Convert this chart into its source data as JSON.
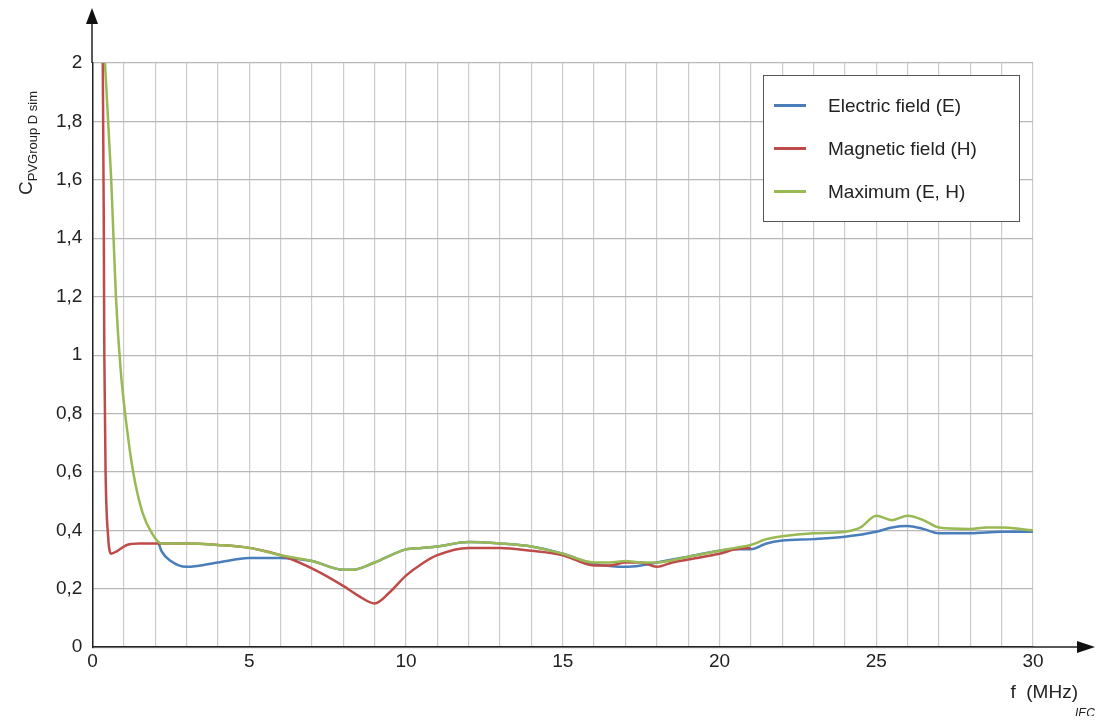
{
  "chart_data": {
    "type": "line",
    "xlabel": "f  (MHz)",
    "ylabel": "C$_{PVGroup D sim}$",
    "annotations": [
      "IEC"
    ],
    "xlim": [
      0,
      30
    ],
    "ylim": [
      0,
      2
    ],
    "xticks": [
      0,
      {
        "value": 1,
        "label": null
      },
      {
        "value": 2,
        "label": null
      },
      {
        "value": 3,
        "label": null
      },
      {
        "value": 4,
        "label": null
      },
      5,
      {
        "value": 6,
        "label": null
      },
      {
        "value": 7,
        "label": null
      },
      {
        "value": 8,
        "label": null
      },
      {
        "value": 9,
        "label": null
      },
      10,
      {
        "value": 11,
        "label": null
      },
      {
        "value": 12,
        "label": null
      },
      {
        "value": 13,
        "label": null
      },
      {
        "value": 14,
        "label": null
      },
      15,
      {
        "value": 16,
        "label": null
      },
      {
        "value": 17,
        "label": null
      },
      {
        "value": 18,
        "label": null
      },
      {
        "value": 19,
        "label": null
      },
      20,
      {
        "value": 21,
        "label": null
      },
      {
        "value": 22,
        "label": null
      },
      {
        "value": 23,
        "label": null
      },
      {
        "value": 24,
        "label": null
      },
      25,
      {
        "value": 26,
        "label": null
      },
      {
        "value": 27,
        "label": null
      },
      {
        "value": 28,
        "label": null
      },
      {
        "value": 29,
        "label": null
      },
      30
    ],
    "yticks": [
      0,
      {
        "value": 0.2,
        "label": "0,2"
      },
      {
        "value": 0.4,
        "label": "0,4"
      },
      {
        "value": 0.6,
        "label": "0,6"
      },
      {
        "value": 0.8,
        "label": "0,8"
      },
      1,
      {
        "value": 1.2,
        "label": "1,2"
      },
      {
        "value": 1.4,
        "label": "1,4"
      },
      {
        "value": 1.6,
        "label": "1,6"
      },
      {
        "value": 1.8,
        "label": "1,8"
      },
      2
    ],
    "grid": true,
    "legend": "top right",
    "marker": "none",
    "line_style": "solid",
    "series": [
      {
        "name": "Electric field (E)",
        "color": "#4a7ebb",
        "x": [
          2.1,
          2.2,
          2.5,
          3,
          4,
          5,
          6,
          7,
          8,
          8.3,
          9,
          10,
          10.5,
          11,
          12,
          13,
          14,
          15,
          16,
          16.5,
          17,
          17.5,
          18,
          19,
          20,
          20.5,
          21,
          21.5,
          22,
          23,
          24,
          25,
          25.5,
          26,
          26.5,
          27,
          28,
          29,
          30
        ],
        "values": [
          0.36,
          0.33,
          0.295,
          0.275,
          0.29,
          0.305,
          0.305,
          0.295,
          0.265,
          0.265,
          0.29,
          0.335,
          0.34,
          0.345,
          0.36,
          0.355,
          0.345,
          0.32,
          0.285,
          0.278,
          0.275,
          0.28,
          0.29,
          0.31,
          0.33,
          0.335,
          0.335,
          0.355,
          0.365,
          0.37,
          0.378,
          0.395,
          0.41,
          0.415,
          0.405,
          0.39,
          0.39,
          0.395,
          0.395
        ]
      },
      {
        "name": "Magnetic field (H)",
        "color": "#be4b48",
        "x": [
          0.33,
          0.36,
          0.38,
          0.42,
          0.5,
          0.6,
          0.8,
          1.1,
          1.5,
          2,
          3,
          4,
          5,
          6,
          7,
          8,
          8.5,
          9,
          9.5,
          10,
          10.5,
          11,
          12,
          13,
          14,
          15,
          16,
          16.5,
          17,
          17.5,
          18,
          18.5,
          19,
          20,
          20.5,
          21
        ],
        "values": [
          2.0,
          1.5,
          1.0,
          0.6,
          0.38,
          0.32,
          0.33,
          0.35,
          0.355,
          0.355,
          0.355,
          0.35,
          0.34,
          0.315,
          0.27,
          0.21,
          0.175,
          0.15,
          0.19,
          0.245,
          0.285,
          0.315,
          0.34,
          0.34,
          0.33,
          0.315,
          0.28,
          0.28,
          0.29,
          0.29,
          0.275,
          0.29,
          0.3,
          0.32,
          0.335,
          0.34
        ]
      },
      {
        "name": "Maximum (E, H)",
        "color": "#98b954",
        "x": [
          0.4,
          0.6,
          0.75,
          0.9,
          1.1,
          1.3,
          1.6,
          1.9,
          2.2,
          3,
          4,
          5,
          6,
          7,
          8,
          8.3,
          9,
          10,
          10.5,
          11,
          12,
          13,
          14,
          15,
          16,
          16.5,
          17,
          17.5,
          18,
          19,
          20,
          20.5,
          21,
          21.5,
          22,
          23,
          24,
          24.5,
          25,
          25.5,
          26,
          26.5,
          27,
          28,
          28.5,
          29,
          30
        ],
        "values": [
          2.0,
          1.6,
          1.2,
          0.95,
          0.75,
          0.6,
          0.46,
          0.39,
          0.355,
          0.355,
          0.35,
          0.34,
          0.315,
          0.295,
          0.265,
          0.265,
          0.29,
          0.335,
          0.34,
          0.345,
          0.36,
          0.355,
          0.345,
          0.32,
          0.29,
          0.29,
          0.295,
          0.29,
          0.29,
          0.31,
          0.33,
          0.34,
          0.35,
          0.37,
          0.38,
          0.39,
          0.395,
          0.41,
          0.45,
          0.435,
          0.45,
          0.435,
          0.41,
          0.405,
          0.41,
          0.41,
          0.4
        ]
      }
    ]
  }
}
